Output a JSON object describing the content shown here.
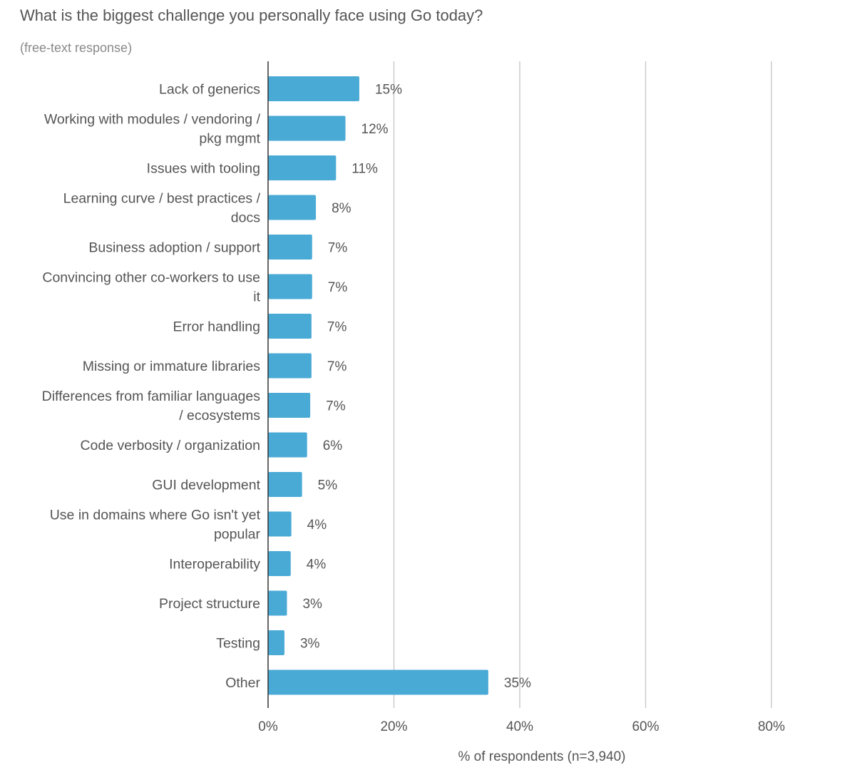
{
  "chart_data": {
    "type": "bar",
    "orientation": "horizontal",
    "title": "What is the biggest challenge you personally face using Go today?",
    "subtitle": "(free-text response)",
    "xlabel": "% of respondents (n=3,940)",
    "ylabel": "",
    "xlim": [
      0,
      80
    ],
    "xticks": [
      "0%",
      "20%",
      "40%",
      "60%",
      "80%"
    ],
    "xtick_values": [
      0,
      20,
      40,
      60,
      80
    ],
    "grid": "vertical",
    "bar_color": "#4aaad6",
    "categories": [
      [
        "Lack of generics"
      ],
      [
        "Working with modules / vendoring /",
        "pkg mgmt"
      ],
      [
        "Issues with tooling"
      ],
      [
        "Learning curve / best practices /",
        "docs"
      ],
      [
        "Business adoption / support"
      ],
      [
        "Convincing other co-workers to use",
        "it"
      ],
      [
        "Error handling"
      ],
      [
        "Missing or immature libraries"
      ],
      [
        "Differences from familiar languages",
        "/ ecosystems"
      ],
      [
        "Code verbosity / organization"
      ],
      [
        "GUI development"
      ],
      [
        "Use in domains where Go isn't yet",
        "popular"
      ],
      [
        "Interoperability"
      ],
      [
        "Project structure"
      ],
      [
        "Testing"
      ],
      [
        "Other"
      ]
    ],
    "values": [
      14.5,
      12.3,
      10.8,
      7.6,
      7.0,
      7.0,
      6.9,
      6.9,
      6.7,
      6.2,
      5.4,
      3.7,
      3.6,
      3.0,
      2.6,
      35.0
    ],
    "data_labels": [
      "15%",
      "12%",
      "11%",
      "8%",
      "7%",
      "7%",
      "7%",
      "7%",
      "7%",
      "6%",
      "5%",
      "4%",
      "4%",
      "3%",
      "3%",
      "35%"
    ]
  }
}
